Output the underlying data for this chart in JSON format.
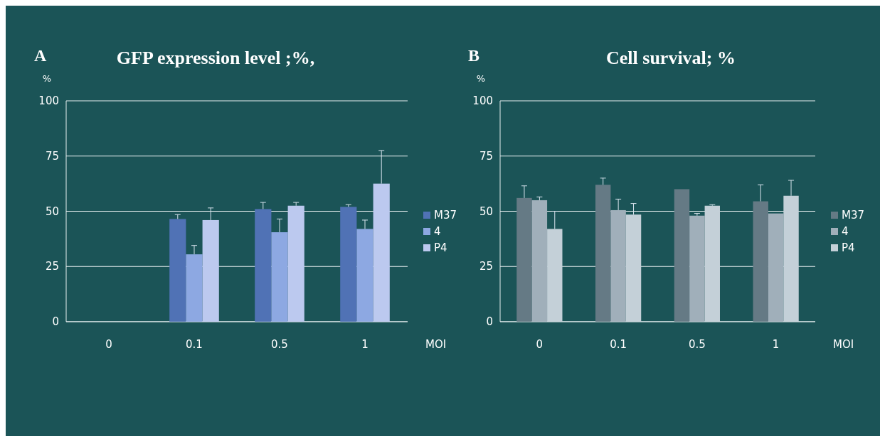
{
  "chart_data": [
    {
      "type": "bar",
      "title": "GFP expression level ;%,",
      "ylabel": "%",
      "xlabel": "MOI",
      "annotations": [
        "A"
      ],
      "categories": [
        "0",
        "0.1",
        "0.5",
        "1"
      ],
      "ylim": [
        0,
        100
      ],
      "yticks": [
        0,
        25,
        50,
        75,
        100
      ],
      "grid": "y",
      "legend": "right",
      "series": [
        {
          "name": "M37",
          "color": "#5072b5",
          "values": [
            0,
            46.5,
            51,
            52
          ],
          "errors": [
            null,
            [
              46.5,
              48.5
            ],
            [
              51,
              54
            ],
            [
              52,
              53
            ]
          ]
        },
        {
          "name": "4",
          "color": "#8da8e2",
          "values": [
            0,
            30.5,
            40.5,
            42
          ],
          "errors": [
            null,
            [
              30.5,
              34.5
            ],
            [
              40.5,
              46.5
            ],
            [
              42,
              46
            ]
          ]
        },
        {
          "name": "P4",
          "color": "#bcc9ef",
          "values": [
            0,
            46,
            52.5,
            62.5
          ],
          "errors": [
            null,
            [
              46,
              51.5
            ],
            [
              52.5,
              54
            ],
            [
              62.5,
              77.5
            ]
          ]
        }
      ]
    },
    {
      "type": "bar",
      "title": "Cell survival; %",
      "ylabel": "%",
      "xlabel": "MOI",
      "annotations": [
        "B"
      ],
      "categories": [
        "0",
        "0.1",
        "0.5",
        "1"
      ],
      "ylim": [
        0,
        100
      ],
      "yticks": [
        0,
        25,
        50,
        75,
        100
      ],
      "grid": "y",
      "legend": "right",
      "series": [
        {
          "name": "M37",
          "color": "#657a85",
          "values": [
            56,
            62,
            60,
            54.5
          ],
          "errors": [
            [
              56,
              61.5
            ],
            [
              62,
              65
            ],
            null,
            [
              54.5,
              62
            ]
          ]
        },
        {
          "name": "4",
          "color": "#a0afba",
          "values": [
            55,
            50.5,
            48,
            49
          ],
          "errors": [
            [
              55,
              56.5
            ],
            [
              50.5,
              55.5
            ],
            [
              48,
              49
            ],
            null
          ]
        },
        {
          "name": "P4",
          "color": "#c4d0d8",
          "values": [
            42,
            48.5,
            52.5,
            57
          ],
          "errors": [
            [
              42,
              50
            ],
            [
              48.5,
              53.5
            ],
            [
              52.5,
              53
            ],
            [
              57,
              64
            ]
          ]
        }
      ]
    }
  ]
}
